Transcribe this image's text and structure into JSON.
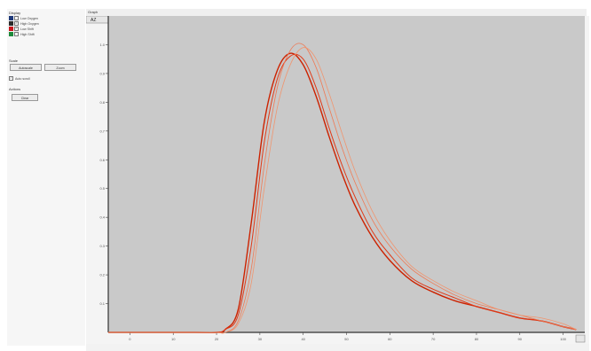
{
  "panel": {
    "display_label": "Display",
    "legend": [
      {
        "label": "Low Oxygen",
        "color": "#1f3a7a",
        "checked": false
      },
      {
        "label": "High Oxygen",
        "color": "#2a2a2a",
        "checked": true
      },
      {
        "label": "Low Shift",
        "color": "#c8161d",
        "checked": true
      },
      {
        "label": "High Shift",
        "color": "#1e8a3c",
        "checked": false
      }
    ],
    "scale_label": "Scale",
    "buttons": {
      "autoscale": "Autoscale",
      "zoom": "Zoom"
    },
    "option_label": "Auto scroll",
    "actions_label": "Actions",
    "clear_label": "Clear"
  },
  "chart_window": {
    "title": "Graph",
    "zoom_badge": "AZ"
  },
  "chart_data": {
    "type": "line",
    "xlim": [
      -5,
      105
    ],
    "ylim": [
      0,
      1.1
    ],
    "x_ticks": [
      "0",
      "10",
      "20",
      "30",
      "40",
      "50",
      "60",
      "70",
      "80",
      "90",
      "100"
    ],
    "y_ticks": [
      "0.1",
      "0.2",
      "0.3",
      "0.4",
      "0.5",
      "0.6",
      "0.7",
      "0.8",
      "0.9",
      "1.0"
    ],
    "grid": false,
    "series": [
      {
        "color": "#cc2200",
        "width": 1.4,
        "x": [
          -5,
          15,
          20,
          22,
          25,
          28,
          31,
          34,
          37,
          40,
          43,
          46,
          49,
          52,
          56,
          60,
          65,
          70,
          75,
          80,
          85,
          90,
          95,
          100,
          103
        ],
        "y": [
          0,
          0,
          0,
          0.01,
          0.08,
          0.38,
          0.73,
          0.91,
          0.97,
          0.93,
          0.82,
          0.68,
          0.55,
          0.44,
          0.33,
          0.25,
          0.18,
          0.14,
          0.11,
          0.09,
          0.07,
          0.05,
          0.04,
          0.02,
          0.01
        ]
      },
      {
        "color": "#e03a18",
        "width": 1.0,
        "x": [
          -5,
          15,
          20,
          22,
          25,
          28,
          31,
          34,
          37,
          40,
          43,
          46,
          49,
          52,
          56,
          60,
          65,
          70,
          75,
          80,
          85,
          90,
          95,
          100,
          103
        ],
        "y": [
          0,
          0,
          0,
          0.01,
          0.06,
          0.3,
          0.66,
          0.88,
          0.96,
          0.95,
          0.85,
          0.71,
          0.58,
          0.47,
          0.35,
          0.27,
          0.19,
          0.15,
          0.12,
          0.09,
          0.07,
          0.05,
          0.04,
          0.02,
          0.01
        ]
      },
      {
        "color": "#ee7a55",
        "width": 0.8,
        "x": [
          -5,
          15,
          20,
          22,
          25,
          28,
          31,
          34,
          37,
          40,
          43,
          46,
          49,
          52,
          56,
          60,
          65,
          70,
          75,
          80,
          85,
          90,
          95,
          100,
          103
        ],
        "y": [
          0,
          0,
          0,
          0.0,
          0.04,
          0.22,
          0.58,
          0.85,
          0.98,
          1.0,
          0.92,
          0.78,
          0.64,
          0.52,
          0.39,
          0.3,
          0.22,
          0.17,
          0.13,
          0.1,
          0.08,
          0.06,
          0.04,
          0.02,
          0.01
        ]
      },
      {
        "color": "#f0956f",
        "width": 0.8,
        "x": [
          -5,
          15,
          20,
          22,
          25,
          28,
          31,
          34,
          37,
          40,
          43,
          46,
          49,
          52,
          56,
          60,
          65,
          70,
          75,
          80,
          85,
          90,
          95,
          100,
          103
        ],
        "y": [
          0,
          0,
          0,
          0.0,
          0.03,
          0.17,
          0.5,
          0.78,
          0.93,
          0.99,
          0.95,
          0.83,
          0.69,
          0.56,
          0.42,
          0.32,
          0.23,
          0.18,
          0.14,
          0.11,
          0.08,
          0.06,
          0.05,
          0.03,
          0.01
        ]
      }
    ]
  }
}
